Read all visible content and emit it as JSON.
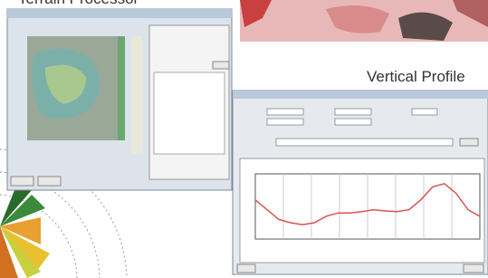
{
  "header": {
    "left_title": "Terrain Processor",
    "right_title": "Vertical Profile"
  },
  "profile": {
    "values": [
      60,
      45,
      30,
      25,
      22,
      25,
      35,
      40,
      40,
      42,
      45,
      43,
      42,
      45,
      60,
      80,
      85,
      70,
      45,
      35
    ],
    "ylim": [
      0,
      100
    ],
    "color": "#d9534f"
  }
}
